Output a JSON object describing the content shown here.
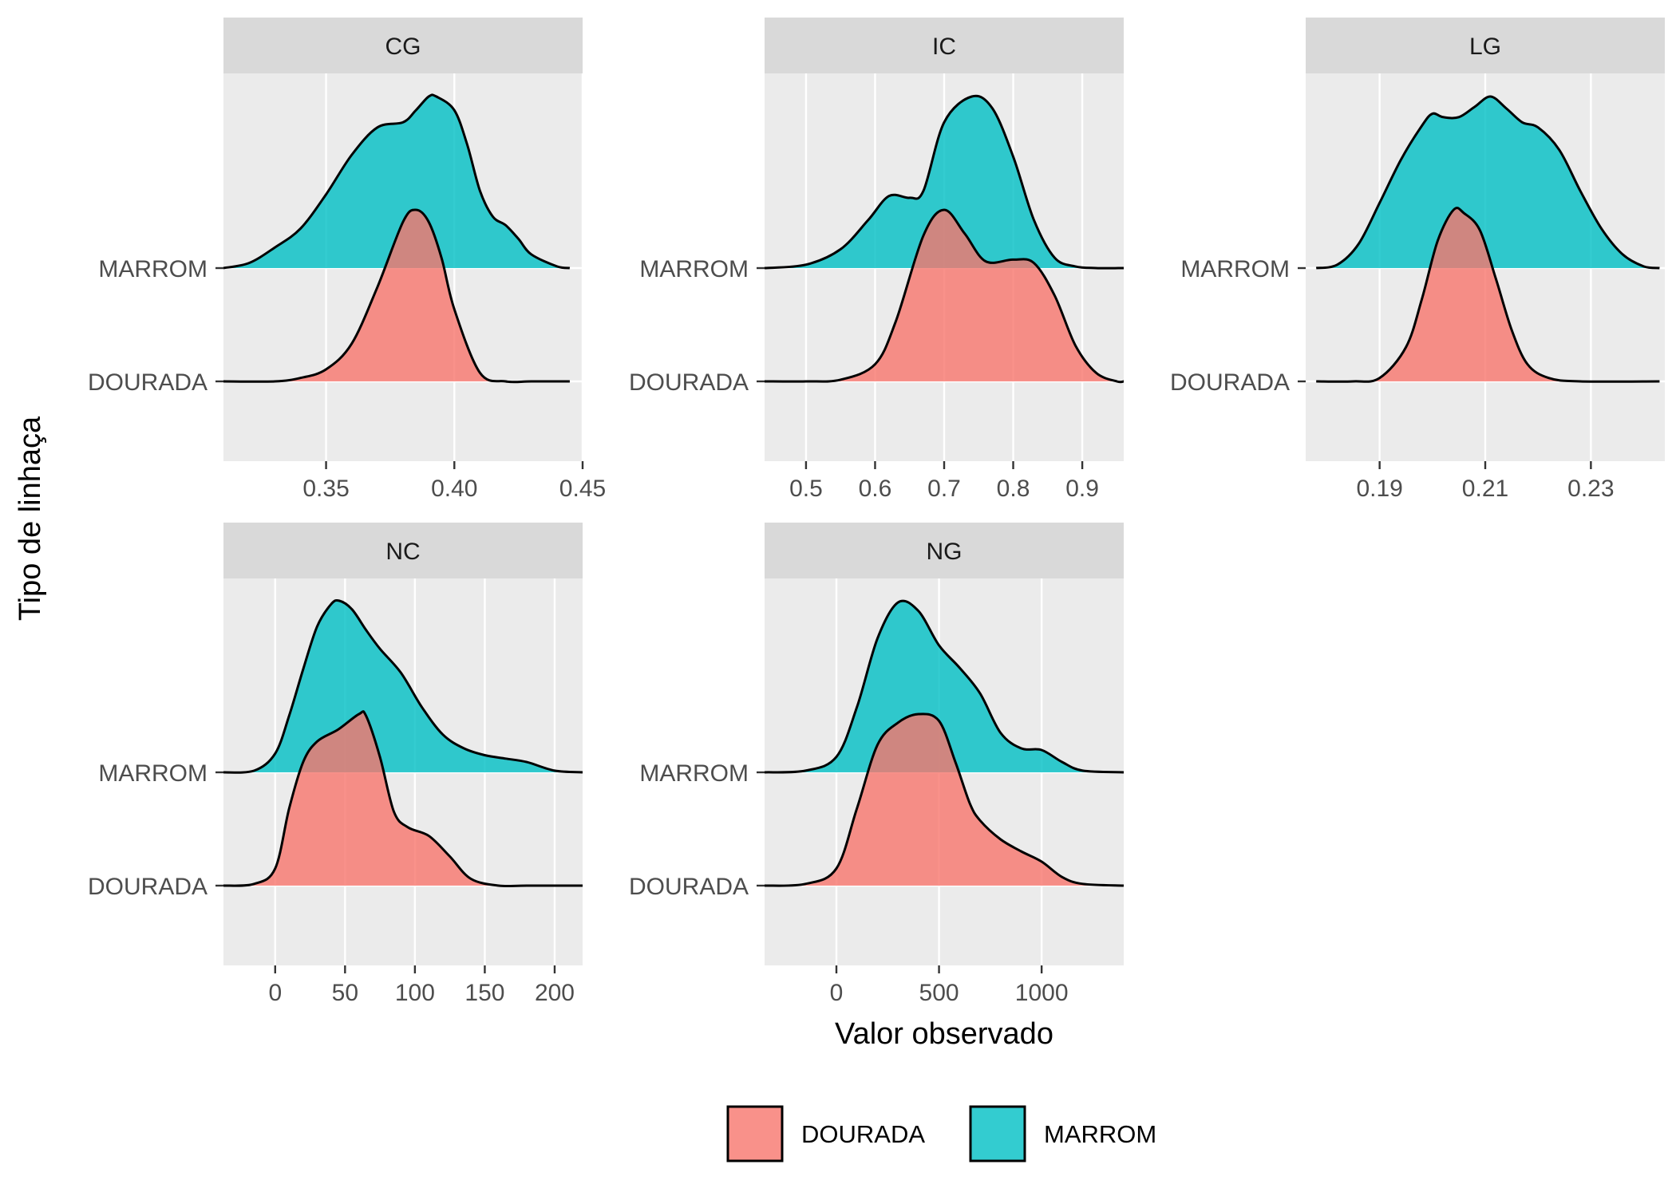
{
  "chart_data": {
    "type": "area",
    "subtype": "ridgeline-density",
    "title": "",
    "xlabel": "Valor observado",
    "ylabel": "Tipo de linhaça",
    "colors": {
      "DOURADA": "#F8766D",
      "MARROM": "#00BFC4",
      "panel_bg": "#EBEBEB",
      "strip_bg": "#D9D9D9",
      "grid": "#FFFFFF",
      "outline": "#000000"
    },
    "legend": {
      "position": "bottom",
      "entries": [
        {
          "name": "DOURADA",
          "color": "#F8766D"
        },
        {
          "name": "MARROM",
          "color": "#00BFC4"
        }
      ]
    },
    "y_categories": [
      "DOURADA",
      "MARROM"
    ],
    "grid": true,
    "panels": [
      {
        "name": "CG",
        "xlim": [
          0.31,
          0.45
        ],
        "xticks": [
          0.35,
          0.4,
          0.45
        ],
        "xtick_labels": [
          "0.35",
          "0.40",
          "0.45"
        ],
        "series": [
          {
            "name": "DOURADA",
            "x": [
              0.31,
              0.33,
              0.34,
              0.35,
              0.36,
              0.37,
              0.38,
              0.385,
              0.39,
              0.395,
              0.4,
              0.41,
              0.42,
              0.43,
              0.445
            ],
            "y": [
              0.0,
              0.0,
              0.02,
              0.07,
              0.22,
              0.55,
              0.93,
              1.0,
              0.93,
              0.72,
              0.42,
              0.05,
              0.0,
              0.0,
              0.0
            ]
          },
          {
            "name": "MARROM",
            "x": [
              0.31,
              0.32,
              0.33,
              0.34,
              0.35,
              0.36,
              0.37,
              0.38,
              0.385,
              0.39,
              0.393,
              0.4,
              0.405,
              0.41,
              0.415,
              0.42,
              0.425,
              0.43,
              0.44,
              0.445
            ],
            "y": [
              0.0,
              0.03,
              0.12,
              0.23,
              0.43,
              0.66,
              0.82,
              0.85,
              0.92,
              1.0,
              1.0,
              0.92,
              0.72,
              0.45,
              0.3,
              0.25,
              0.17,
              0.08,
              0.01,
              0.0
            ]
          }
        ]
      },
      {
        "name": "IC",
        "xlim": [
          0.44,
          0.96
        ],
        "xticks": [
          0.5,
          0.6,
          0.7,
          0.8,
          0.9
        ],
        "xtick_labels": [
          "0.5",
          "0.6",
          "0.7",
          "0.8",
          "0.9"
        ],
        "series": [
          {
            "name": "DOURADA",
            "x": [
              0.44,
              0.5,
              0.55,
              0.6,
              0.63,
              0.67,
              0.7,
              0.73,
              0.76,
              0.8,
              0.83,
              0.86,
              0.89,
              0.92,
              0.95,
              0.96
            ],
            "y": [
              0.0,
              0.0,
              0.01,
              0.1,
              0.35,
              0.85,
              1.0,
              0.86,
              0.7,
              0.71,
              0.69,
              0.5,
              0.21,
              0.05,
              0.0,
              0.0
            ]
          },
          {
            "name": "MARROM",
            "x": [
              0.44,
              0.5,
              0.55,
              0.59,
              0.62,
              0.65,
              0.67,
              0.7,
              0.74,
              0.77,
              0.8,
              0.83,
              0.86,
              0.89,
              0.92,
              0.96
            ],
            "y": [
              0.0,
              0.02,
              0.11,
              0.28,
              0.42,
              0.41,
              0.45,
              0.85,
              1.0,
              0.93,
              0.65,
              0.28,
              0.06,
              0.01,
              0.0,
              0.0
            ]
          }
        ]
      },
      {
        "name": "LG",
        "xlim": [
          0.176,
          0.244
        ],
        "xticks": [
          0.19,
          0.21,
          0.23
        ],
        "xtick_labels": [
          "0.19",
          "0.21",
          "0.23"
        ],
        "series": [
          {
            "name": "DOURADA",
            "x": [
              0.178,
              0.185,
              0.19,
              0.195,
              0.198,
              0.201,
              0.204,
              0.206,
              0.209,
              0.212,
              0.215,
              0.218,
              0.222,
              0.228,
              0.243
            ],
            "y": [
              0.0,
              0.0,
              0.02,
              0.2,
              0.48,
              0.82,
              1.0,
              0.98,
              0.88,
              0.6,
              0.3,
              0.1,
              0.02,
              0.0,
              0.0
            ]
          },
          {
            "name": "MARROM",
            "x": [
              0.178,
              0.182,
              0.186,
              0.19,
              0.194,
              0.198,
              0.2,
              0.202,
              0.205,
              0.208,
              0.211,
              0.214,
              0.217,
              0.22,
              0.224,
              0.228,
              0.232,
              0.236,
              0.24,
              0.243
            ],
            "y": [
              0.0,
              0.02,
              0.14,
              0.38,
              0.63,
              0.83,
              0.9,
              0.88,
              0.88,
              0.94,
              1.0,
              0.93,
              0.85,
              0.82,
              0.69,
              0.45,
              0.23,
              0.08,
              0.01,
              0.0
            ]
          }
        ]
      },
      {
        "name": "NC",
        "xlim": [
          -37,
          220
        ],
        "xticks": [
          0,
          50,
          100,
          150,
          200
        ],
        "xtick_labels": [
          "0",
          "50",
          "100",
          "150",
          "200"
        ],
        "series": [
          {
            "name": "DOURADA",
            "x": [
              -37,
              -15,
              0,
              10,
              20,
              30,
              45,
              60,
              65,
              75,
              85,
              95,
              110,
              125,
              140,
              160,
              180,
              220
            ],
            "y": [
              0.0,
              0.01,
              0.1,
              0.45,
              0.72,
              0.84,
              0.91,
              1.0,
              0.99,
              0.75,
              0.43,
              0.34,
              0.29,
              0.17,
              0.04,
              0.0,
              0.0,
              0.0
            ]
          },
          {
            "name": "MARROM",
            "x": [
              -37,
              -15,
              0,
              10,
              20,
              30,
              40,
              46,
              55,
              65,
              75,
              90,
              105,
              120,
              135,
              150,
              165,
              180,
              200,
              220
            ],
            "y": [
              0.0,
              0.01,
              0.11,
              0.33,
              0.6,
              0.85,
              0.98,
              1.0,
              0.95,
              0.83,
              0.72,
              0.58,
              0.38,
              0.22,
              0.14,
              0.1,
              0.08,
              0.06,
              0.01,
              0.0
            ]
          }
        ]
      },
      {
        "name": "NG",
        "xlim": [
          -350,
          1400
        ],
        "xticks": [
          0,
          500,
          1000
        ],
        "xtick_labels": [
          "0",
          "500",
          "1000"
        ],
        "series": [
          {
            "name": "DOURADA",
            "x": [
              -350,
              -150,
              0,
              100,
              200,
              300,
              400,
              500,
              580,
              650,
              700,
              800,
              900,
              1000,
              1100,
              1200,
              1400
            ],
            "y": [
              0.0,
              0.01,
              0.1,
              0.45,
              0.82,
              0.95,
              1.0,
              0.96,
              0.72,
              0.48,
              0.38,
              0.27,
              0.2,
              0.14,
              0.05,
              0.01,
              0.0
            ]
          },
          {
            "name": "MARROM",
            "x": [
              -350,
              -150,
              0,
              100,
              200,
              300,
              400,
              500,
              600,
              700,
              800,
              900,
              1000,
              1100,
              1200,
              1400
            ],
            "y": [
              0.0,
              0.01,
              0.09,
              0.38,
              0.78,
              0.99,
              0.94,
              0.74,
              0.61,
              0.46,
              0.23,
              0.14,
              0.13,
              0.06,
              0.01,
              0.0
            ]
          }
        ]
      }
    ]
  }
}
